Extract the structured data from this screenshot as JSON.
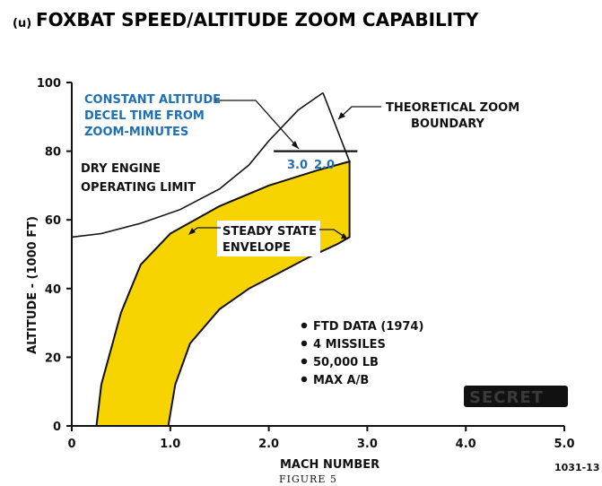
{
  "page": {
    "title_prefix": "(u)",
    "title": "FOXBAT SPEED/ALTITUDE ZOOM CAPABILITY",
    "figure_caption": "FIGURE 5",
    "doc_number": "1031-13",
    "classification_mark": "SECRET"
  },
  "chart_data": {
    "type": "area",
    "xlabel": "MACH NUMBER",
    "ylabel": "ALTITUDE - (1000 FT)",
    "xlim": [
      0,
      5.0
    ],
    "ylim": [
      0,
      100
    ],
    "x_ticks": [
      "0",
      "1.0",
      "2.0",
      "3.0",
      "4.0",
      "5.0"
    ],
    "y_ticks": [
      "0",
      "20",
      "40",
      "60",
      "80",
      "100"
    ],
    "grid": false,
    "colors": {
      "envelope_fill": "#f7d300",
      "annotation_blue": "#1f6fb4",
      "line": "#111111"
    },
    "series": [
      {
        "name": "STEADY STATE ENVELOPE",
        "kind": "filled_area",
        "points": [
          [
            0.98,
            0
          ],
          [
            1.05,
            12
          ],
          [
            1.2,
            24
          ],
          [
            1.5,
            34
          ],
          [
            1.8,
            40
          ],
          [
            2.1,
            44.5
          ],
          [
            2.4,
            49
          ],
          [
            2.7,
            53
          ],
          [
            2.82,
            55
          ],
          [
            2.82,
            77
          ],
          [
            2.5,
            74.5
          ],
          [
            2.0,
            70
          ],
          [
            1.5,
            64
          ],
          [
            1.0,
            56
          ],
          [
            0.7,
            47
          ],
          [
            0.5,
            33
          ],
          [
            0.3,
            12
          ],
          [
            0.25,
            0
          ]
        ]
      },
      {
        "name": "DRY ENGINE OPERATING LIMIT",
        "kind": "line",
        "points": [
          [
            0.0,
            55
          ],
          [
            0.3,
            56
          ],
          [
            0.7,
            59
          ],
          [
            1.1,
            63
          ],
          [
            1.5,
            69
          ],
          [
            1.8,
            76
          ],
          [
            2.0,
            83
          ],
          [
            2.3,
            92
          ],
          [
            2.55,
            97
          ]
        ]
      },
      {
        "name": "THEORETICAL ZOOM BOUNDARY",
        "kind": "line",
        "points": [
          [
            2.55,
            97
          ],
          [
            2.82,
            77
          ]
        ]
      },
      {
        "name": "CONSTANT ALTITUDE DECEL TIME FROM ZOOM-MINUTES",
        "kind": "reference_line",
        "points": [
          [
            2.05,
            80
          ],
          [
            2.9,
            80
          ]
        ]
      }
    ],
    "annotations": {
      "decel_time": [
        "CONSTANT ALTITUDE",
        "DECEL TIME FROM",
        "ZOOM-MINUTES"
      ],
      "decel_values": [
        "3.0",
        "2.0"
      ],
      "theoretical_zoom": [
        "THEORETICAL ZOOM",
        "BOUNDARY"
      ],
      "dry_engine": [
        "DRY ENGINE",
        "OPERATING LIMIT"
      ],
      "steady_state": [
        "STEADY STATE",
        "ENVELOPE"
      ],
      "conditions": [
        "FTD DATA (1974)",
        "4 MISSILES",
        "50,000 LB",
        "MAX  A/B"
      ]
    }
  }
}
